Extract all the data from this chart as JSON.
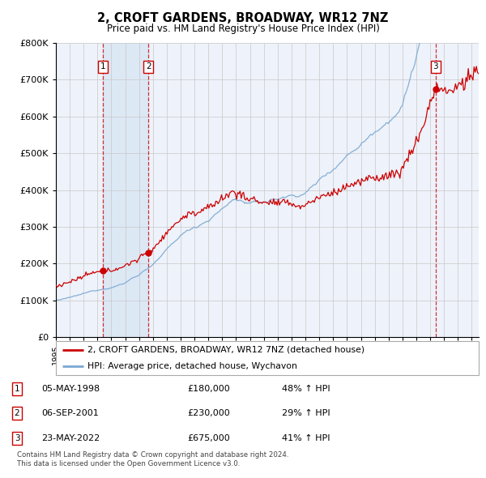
{
  "title": "2, CROFT GARDENS, BROADWAY, WR12 7NZ",
  "subtitle": "Price paid vs. HM Land Registry's House Price Index (HPI)",
  "legend_line1": "2, CROFT GARDENS, BROADWAY, WR12 7NZ (detached house)",
  "legend_line2": "HPI: Average price, detached house, Wychavon",
  "footer1": "Contains HM Land Registry data © Crown copyright and database right 2024.",
  "footer2": "This data is licensed under the Open Government Licence v3.0.",
  "transactions": [
    {
      "num": "1",
      "date": "05-MAY-1998",
      "price": "£180,000",
      "change": "48% ↑ HPI",
      "year": 1998.37,
      "value": 180000
    },
    {
      "num": "2",
      "date": "06-SEP-2001",
      "price": "£230,000",
      "change": "29% ↑ HPI",
      "year": 2001.68,
      "value": 230000
    },
    {
      "num": "3",
      "date": "23-MAY-2022",
      "price": "£675,000",
      "change": "41% ↑ HPI",
      "year": 2022.39,
      "value": 675000
    }
  ],
  "ylim": [
    0,
    800000
  ],
  "ytick_max": 800000,
  "xlim_start": 1995.0,
  "xlim_end": 2025.5,
  "red_color": "#cc0000",
  "blue_color": "#7aa8d2",
  "shade_color": "#dde8f5",
  "bg_color": "#eef2fa",
  "grid_color": "#c8c8c8"
}
